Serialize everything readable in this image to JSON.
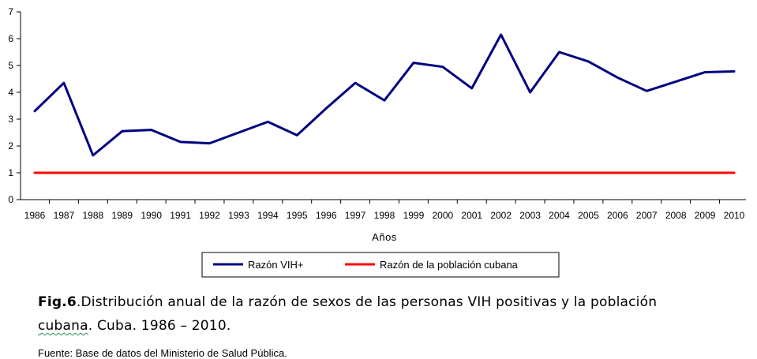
{
  "chart_data": {
    "type": "line",
    "categories": [
      "1986",
      "1987",
      "1988",
      "1989",
      "1990",
      "1991",
      "1992",
      "1993",
      "1994",
      "1995",
      "1996",
      "1997",
      "1998",
      "1999",
      "2000",
      "2001",
      "2002",
      "2003",
      "2004",
      "2005",
      "2006",
      "2007",
      "2008",
      "2009",
      "2010"
    ],
    "series": [
      {
        "name": "Razón VIH+",
        "color": "#000080",
        "values": [
          3.3,
          4.35,
          1.65,
          2.55,
          2.6,
          2.15,
          2.1,
          2.5,
          2.9,
          2.4,
          3.4,
          4.35,
          3.7,
          5.1,
          4.95,
          4.15,
          6.15,
          4.0,
          5.5,
          5.15,
          4.55,
          4.05,
          4.4,
          4.75,
          4.78
        ]
      },
      {
        "name": "Razón de la población cubana",
        "color": "#ff0000",
        "values": [
          1,
          1,
          1,
          1,
          1,
          1,
          1,
          1,
          1,
          1,
          1,
          1,
          1,
          1,
          1,
          1,
          1,
          1,
          1,
          1,
          1,
          1,
          1,
          1,
          1
        ]
      }
    ],
    "title": "",
    "xlabel": "Años",
    "ylabel": "",
    "ylim": [
      0,
      7
    ],
    "yticks": [
      0,
      1,
      2,
      3,
      4,
      5,
      6,
      7
    ],
    "grid": false,
    "legend": "bottom"
  },
  "caption": {
    "fig_label": "Fig.6",
    "line1": ".Distribución anual de la razón de sexos de las personas VIH positivas y la población",
    "line2_word": "cubana",
    "line2_rest": ". Cuba. 1986 – 2010."
  },
  "source": "Fuente: Base de datos del Ministerio de Salud Pública."
}
